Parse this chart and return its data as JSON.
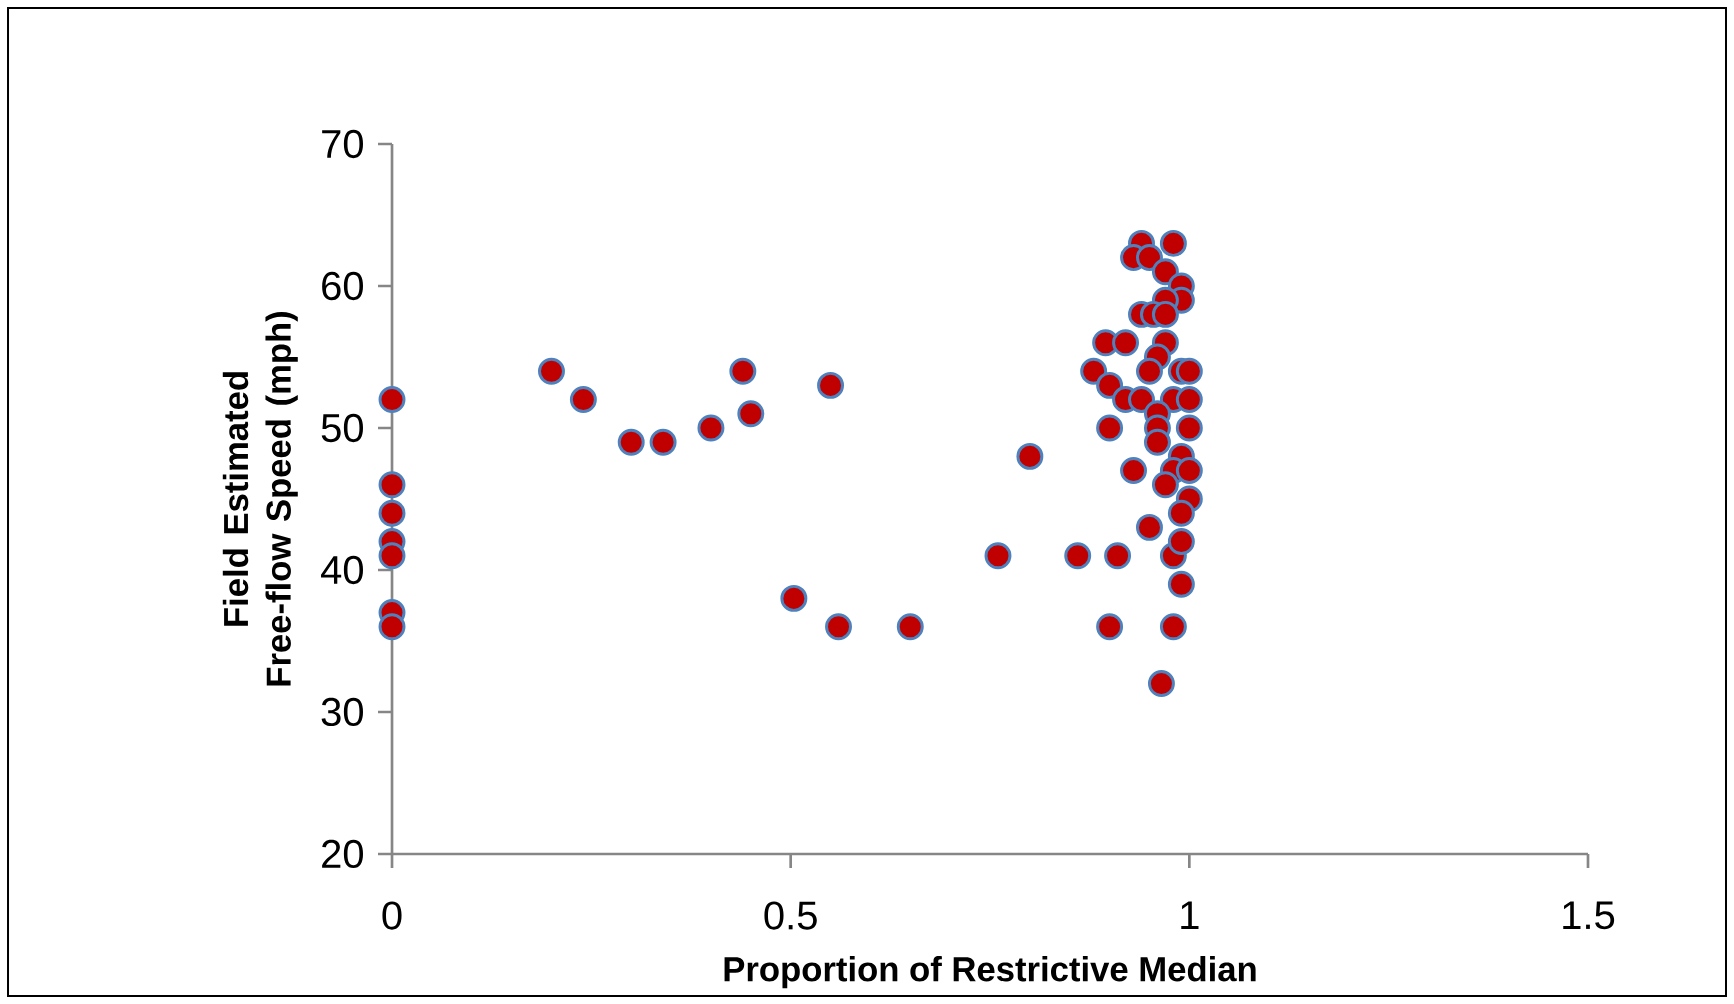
{
  "chart_data": {
    "type": "scatter",
    "xlabel": "Proportion of Restrictive Median",
    "ylabel": "Field Estimated Free-flow Speed (mph)",
    "xlim": [
      0,
      1.5
    ],
    "ylim": [
      20,
      70
    ],
    "xticks": [
      0,
      0.5,
      1,
      1.5
    ],
    "yticks": [
      20,
      30,
      40,
      50,
      60,
      70
    ],
    "marker": "circle",
    "series": [
      {
        "color": "#c00000",
        "x": [
          0,
          0,
          0,
          0,
          0,
          0,
          0,
          0.2,
          0.24,
          0.3,
          0.34,
          0.4,
          0.44,
          0.45,
          0.55,
          0.504,
          0.56,
          0.65,
          0.76,
          0.8,
          0.86,
          0.91,
          0.9,
          0.98,
          0.965,
          0.99,
          0.98,
          0.95,
          0.93,
          0.9,
          0.895,
          0.88,
          0.9,
          0.92,
          0.94,
          0.98,
          0.93,
          0.95,
          0.97,
          0.99,
          0.99,
          0.97,
          0.94,
          0.955,
          0.97,
          0.97,
          0.96,
          0.95,
          0.99,
          1.0,
          0.92,
          0.94,
          0.98,
          1.0,
          0.96,
          1.0,
          0.96,
          0.96,
          0.99,
          0.98,
          1.0,
          0.97,
          1.0,
          0.99,
          0.99
        ],
        "values": [
          52,
          46,
          44,
          42,
          41,
          37,
          36,
          54,
          52,
          49,
          49,
          50,
          54,
          51,
          53,
          38,
          36,
          36,
          41,
          48,
          41,
          41,
          36,
          36,
          32,
          39,
          41,
          43,
          47,
          50,
          56,
          54,
          53,
          56,
          63,
          63,
          62,
          62,
          61,
          60,
          59,
          59,
          58,
          58,
          58,
          56,
          55,
          54,
          54,
          54,
          52,
          52,
          52,
          52,
          51,
          50,
          50,
          49,
          48,
          47,
          47,
          46,
          45,
          44,
          42
        ]
      }
    ]
  }
}
